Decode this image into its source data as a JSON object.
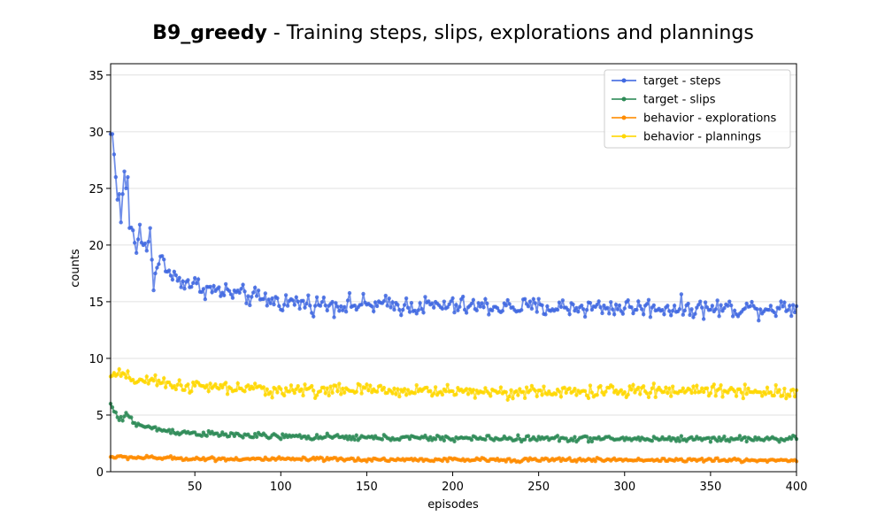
{
  "chart_data": {
    "type": "line",
    "title_bold": "B9_greedy",
    "title_rest": " - Training steps, slips, explorations and plannings",
    "xlabel": "episodes",
    "ylabel": "counts",
    "xlim": [
      1,
      400
    ],
    "ylim": [
      0,
      36
    ],
    "xticks": [
      50,
      100,
      150,
      200,
      250,
      300,
      350,
      400
    ],
    "yticks": [
      0,
      5,
      10,
      15,
      20,
      25,
      30,
      35
    ],
    "grid": "horizontal",
    "legend_position": "top-right",
    "n_episodes": 400,
    "series": [
      {
        "name": "target - steps",
        "color": "#4169E1",
        "keypoints": [
          [
            1,
            29.8
          ],
          [
            2,
            29.8
          ],
          [
            3,
            28
          ],
          [
            4,
            26
          ],
          [
            5,
            24
          ],
          [
            6,
            24.5
          ],
          [
            7,
            22
          ],
          [
            8,
            24.5
          ],
          [
            9,
            26.5
          ],
          [
            10,
            25
          ],
          [
            11,
            26
          ],
          [
            12,
            21.5
          ],
          [
            14,
            21.3
          ],
          [
            15,
            20.2
          ],
          [
            16,
            19.3
          ],
          [
            18,
            21.8
          ],
          [
            20,
            20
          ],
          [
            22,
            19.5
          ],
          [
            24,
            21.5
          ],
          [
            26,
            16
          ],
          [
            28,
            18
          ],
          [
            30,
            19
          ],
          [
            35,
            17.5
          ],
          [
            40,
            17
          ],
          [
            50,
            16.5
          ],
          [
            60,
            16
          ],
          [
            70,
            15.8
          ],
          [
            80,
            15.5
          ],
          [
            90,
            15.2
          ],
          [
            100,
            15
          ],
          [
            120,
            14.8
          ],
          [
            150,
            14.7
          ],
          [
            200,
            14.6
          ],
          [
            250,
            14.5
          ],
          [
            300,
            14.5
          ],
          [
            350,
            14.4
          ],
          [
            400,
            14.5
          ]
        ],
        "noise": 0.6
      },
      {
        "name": "target - slips",
        "color": "#2E8B57",
        "keypoints": [
          [
            1,
            6
          ],
          [
            3,
            5.3
          ],
          [
            5,
            4.8
          ],
          [
            8,
            4.5
          ],
          [
            10,
            5.2
          ],
          [
            15,
            4.3
          ],
          [
            20,
            4
          ],
          [
            30,
            3.7
          ],
          [
            40,
            3.5
          ],
          [
            50,
            3.4
          ],
          [
            60,
            3.3
          ],
          [
            80,
            3.2
          ],
          [
            100,
            3.1
          ],
          [
            150,
            3
          ],
          [
            200,
            2.95
          ],
          [
            300,
            2.9
          ],
          [
            400,
            2.9
          ]
        ],
        "noise": 0.18
      },
      {
        "name": "behavior - explorations",
        "color": "#FF8C00",
        "keypoints": [
          [
            1,
            1.3
          ],
          [
            50,
            1.15
          ],
          [
            100,
            1.1
          ],
          [
            200,
            1.05
          ],
          [
            300,
            1.05
          ],
          [
            400,
            1.0
          ]
        ],
        "noise": 0.12
      },
      {
        "name": "behavior - plannings",
        "color": "#FFD700",
        "keypoints": [
          [
            1,
            8.4
          ],
          [
            5,
            8.6
          ],
          [
            10,
            8.3
          ],
          [
            20,
            8.0
          ],
          [
            30,
            7.8
          ],
          [
            50,
            7.5
          ],
          [
            80,
            7.3
          ],
          [
            100,
            7.2
          ],
          [
            150,
            7.2
          ],
          [
            200,
            7.1
          ],
          [
            250,
            7.0
          ],
          [
            300,
            7.1
          ],
          [
            350,
            7.2
          ],
          [
            400,
            7.0
          ]
        ],
        "noise": 0.4
      }
    ]
  }
}
